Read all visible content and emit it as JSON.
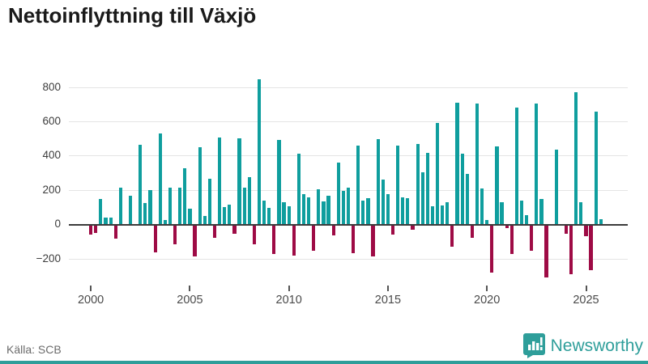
{
  "title": "Nettoinflyttning till Växjö",
  "source": "Källa: SCB",
  "brand": {
    "name": "Newsworthy"
  },
  "colors": {
    "positive": "#0f9e9e",
    "negative": "#9e0b45",
    "accent": "#2e9e9a",
    "gridline": "#e4e4e4",
    "zero_line": "#3b3b3b",
    "title_text": "#1a1a1a",
    "axis_text": "#3c3c3c"
  },
  "chart_data": {
    "type": "bar",
    "title": "Nettoinflyttning till Växjö",
    "xlabel": "",
    "ylabel": "",
    "grid": true,
    "legend": "none",
    "ylim": [
      -320,
      930
    ],
    "yticks": [
      800,
      600,
      400,
      200,
      0,
      -200
    ],
    "xticks": [
      "2000",
      "2005",
      "2010",
      "2015",
      "2020",
      "2025"
    ],
    "x": [
      "2000 Q1",
      "2000 Q2",
      "2000 Q3",
      "2000 Q4",
      "2001 Q1",
      "2001 Q2",
      "2001 Q3",
      "2001 Q4",
      "2002 Q1",
      "2002 Q2",
      "2002 Q3",
      "2002 Q4",
      "2003 Q1",
      "2003 Q2",
      "2003 Q3",
      "2003 Q4",
      "2004 Q1",
      "2004 Q2",
      "2004 Q3",
      "2004 Q4",
      "2005 Q1",
      "2005 Q2",
      "2005 Q3",
      "2005 Q4",
      "2006 Q1",
      "2006 Q2",
      "2006 Q3",
      "2006 Q4",
      "2007 Q1",
      "2007 Q2",
      "2007 Q3",
      "2007 Q4",
      "2008 Q1",
      "2008 Q2",
      "2008 Q3",
      "2008 Q4",
      "2009 Q1",
      "2009 Q2",
      "2009 Q3",
      "2009 Q4",
      "2010 Q1",
      "2010 Q2",
      "2010 Q3",
      "2010 Q4",
      "2011 Q1",
      "2011 Q2",
      "2011 Q3",
      "2011 Q4",
      "2012 Q1",
      "2012 Q2",
      "2012 Q3",
      "2012 Q4",
      "2013 Q1",
      "2013 Q2",
      "2013 Q3",
      "2013 Q4",
      "2014 Q1",
      "2014 Q2",
      "2014 Q3",
      "2014 Q4",
      "2015 Q1",
      "2015 Q2",
      "2015 Q3",
      "2015 Q4",
      "2016 Q1",
      "2016 Q2",
      "2016 Q3",
      "2016 Q4",
      "2017 Q1",
      "2017 Q2",
      "2017 Q3",
      "2017 Q4",
      "2018 Q1",
      "2018 Q2",
      "2018 Q3",
      "2018 Q4",
      "2019 Q1",
      "2019 Q2",
      "2019 Q3",
      "2019 Q4",
      "2020 Q1",
      "2020 Q2",
      "2020 Q3",
      "2020 Q4",
      "2021 Q1",
      "2021 Q2",
      "2021 Q3",
      "2021 Q4",
      "2022 Q1",
      "2022 Q2",
      "2022 Q3",
      "2022 Q4",
      "2023 Q1",
      "2023 Q2",
      "2023 Q3",
      "2023 Q4",
      "2024 Q1",
      "2024 Q2",
      "2024 Q3",
      "2024 Q4",
      "2025 Q1",
      "2025 Q2",
      "2025 Q3",
      "2025 Q4"
    ],
    "values": [
      -60,
      -50,
      145,
      40,
      40,
      -85,
      215,
      0,
      165,
      0,
      465,
      125,
      200,
      -165,
      530,
      25,
      215,
      -115,
      215,
      325,
      90,
      -190,
      450,
      50,
      265,
      -80,
      505,
      100,
      115,
      -55,
      500,
      215,
      275,
      -115,
      845,
      140,
      95,
      -175,
      490,
      130,
      105,
      -185,
      410,
      175,
      155,
      -155,
      205,
      135,
      165,
      -65,
      360,
      195,
      215,
      -170,
      460,
      140,
      150,
      -190,
      495,
      260,
      175,
      -60,
      460,
      155,
      150,
      -30,
      470,
      305,
      415,
      105,
      590,
      110,
      130,
      -130,
      710,
      410,
      295,
      -80,
      705,
      210,
      25,
      -280,
      455,
      130,
      -25,
      -175,
      680,
      140,
      55,
      -155,
      705,
      145,
      -310,
      0,
      435,
      0,
      -55,
      -290,
      770,
      130,
      -70,
      -270,
      655,
      30
    ]
  }
}
